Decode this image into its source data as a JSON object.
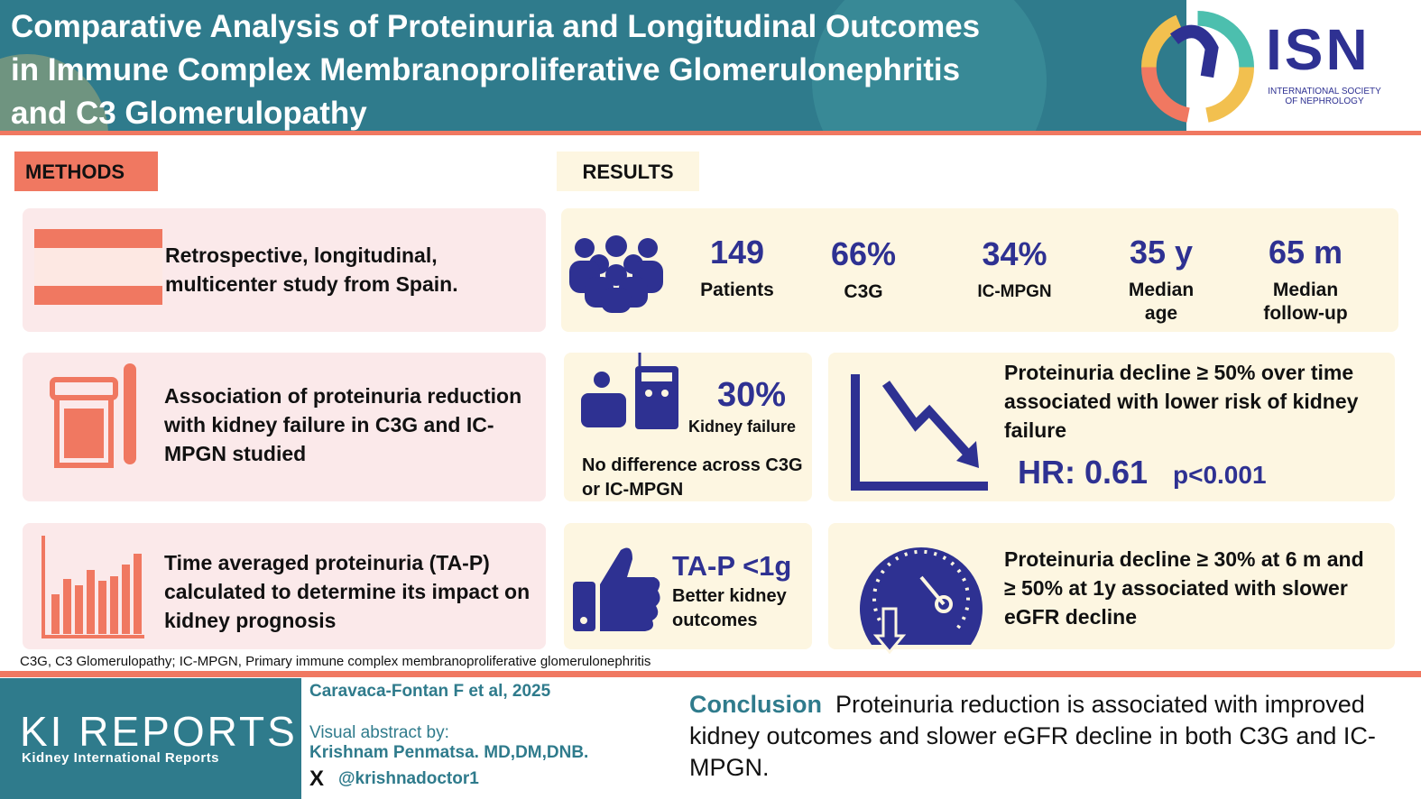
{
  "header": {
    "title": "Comparative Analysis of Proteinuria and Longitudinal Outcomes in Immune Complex Membranoproliferative Glomerulonephritis and C3 Glomerulopathy"
  },
  "logo": {
    "isn": "ISN",
    "isn_sub": "INTERNATIONAL SOCIETY OF NEPHROLOGY"
  },
  "colors": {
    "teal": "#2f7b8c",
    "coral": "#f07861",
    "navy": "#2e3192",
    "pink": "#fbe9ea",
    "cream": "#fdf6e1"
  },
  "methods": {
    "label": "METHODS",
    "items": [
      {
        "icon": "spain-flag-icon",
        "text": "Retrospective, longitudinal, multicenter study from Spain."
      },
      {
        "icon": "urine-sample-icon",
        "text": "Association of proteinuria reduction with kidney failure in C3G and IC-MPGN studied"
      },
      {
        "icon": "bar-chart-icon",
        "text": "Time averaged proteinuria (TA-P) calculated to determine its impact on kidney prognosis"
      }
    ]
  },
  "results": {
    "label": "RESULTS",
    "stats": [
      {
        "value": "149",
        "label": "Patients"
      },
      {
        "value": "66%",
        "label": "C3G"
      },
      {
        "value": "34%",
        "label": "IC-MPGN"
      },
      {
        "value": "35 y",
        "label": "Median age"
      },
      {
        "value": "65 m",
        "label": "Median follow-up"
      }
    ],
    "kidney_failure": {
      "value": "30%",
      "label": "Kidney failure",
      "note": "No difference across C3G or IC-MPGN"
    },
    "decline50": {
      "text": "Proteinuria decline ≥ 50% over time associated with lower risk of kidney failure",
      "hr": "HR: 0.61",
      "p": "p<0.001"
    },
    "tap": {
      "value": "TA-P <1g",
      "label": "Better kidney outcomes"
    },
    "egfr": {
      "text": "Proteinuria decline ≥ 30% at 6 m and ≥ 50% at 1y associated with slower eGFR decline"
    }
  },
  "footnote": "C3G, C3 Glomerulopathy; IC-MPGN,  Primary immune complex membranoproliferative glomerulonephritis",
  "footer": {
    "journal": "KI REPORTS",
    "journal_sub": "Kidney International Reports",
    "citation": "Caravaca-Fontan F et al, 2025",
    "va_by": "Visual abstract by:",
    "author": "Krishnam Penmatsa. MD,DM,DNB.",
    "handle": "@krishnadoctor1",
    "x_icon": "X",
    "conclusion_label": "Conclusion",
    "conclusion": "Proteinuria reduction is associated with improved kidney outcomes and slower eGFR decline in both C3G and  IC-MPGN."
  }
}
